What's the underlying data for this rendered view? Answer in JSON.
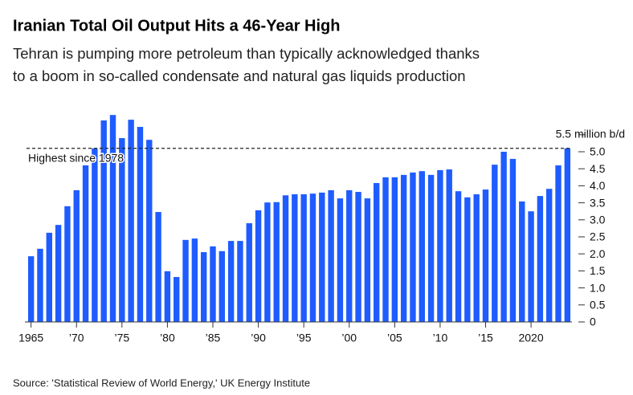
{
  "chart_data": {
    "type": "bar",
    "title": "Iranian Total Oil Output Hits a 46-Year High",
    "subtitle": [
      "Tehran is pumping more petroleum than typically acknowledged thanks",
      "to a boom in so-called condensate and natural gas liquids production"
    ],
    "annotation": "Highest since 1978",
    "source": "Source: 'Statistical Review of World Energy,' UK Energy Institute",
    "color": "#1f5cff",
    "categories": [
      "1965",
      null,
      null,
      null,
      null,
      "’70",
      null,
      null,
      null,
      null,
      "’75",
      null,
      null,
      null,
      null,
      "’80",
      null,
      null,
      null,
      null,
      "’85",
      null,
      null,
      null,
      null,
      "’90",
      null,
      null,
      null,
      null,
      "’95",
      null,
      null,
      null,
      null,
      "’00",
      null,
      null,
      null,
      null,
      "’05",
      null,
      null,
      null,
      null,
      "’10",
      null,
      null,
      null,
      null,
      "’15",
      null,
      null,
      null,
      null,
      "2020",
      null,
      null,
      null,
      null
    ],
    "values": [
      1.93,
      2.15,
      2.62,
      2.85,
      3.4,
      3.87,
      4.6,
      5.1,
      5.92,
      6.08,
      5.4,
      5.94,
      5.73,
      5.35,
      3.23,
      1.49,
      1.32,
      2.41,
      2.45,
      2.05,
      2.22,
      2.08,
      2.38,
      2.38,
      2.9,
      3.28,
      3.51,
      3.52,
      3.72,
      3.75,
      3.75,
      3.77,
      3.8,
      3.87,
      3.63,
      3.87,
      3.82,
      3.63,
      4.08,
      4.25,
      4.25,
      4.32,
      4.39,
      4.43,
      4.32,
      4.46,
      4.48,
      3.84,
      3.66,
      3.75,
      3.89,
      4.62,
      5.0,
      4.79,
      3.54,
      3.25,
      3.7,
      3.91,
      4.6,
      5.1
    ],
    "ylim": [
      0,
      6.1
    ],
    "yticks": [
      0,
      0.5,
      {
        "value": 1,
        "label": "1.0"
      },
      1.5,
      {
        "value": 2,
        "label": "2.0"
      },
      2.5,
      {
        "value": 3,
        "label": "3.0"
      },
      3.5,
      {
        "value": 4,
        "label": "4.0"
      },
      4.5,
      {
        "value": 5,
        "label": "5.0"
      },
      {
        "value": 5.5,
        "label": "5.5 million b/d"
      }
    ]
  }
}
